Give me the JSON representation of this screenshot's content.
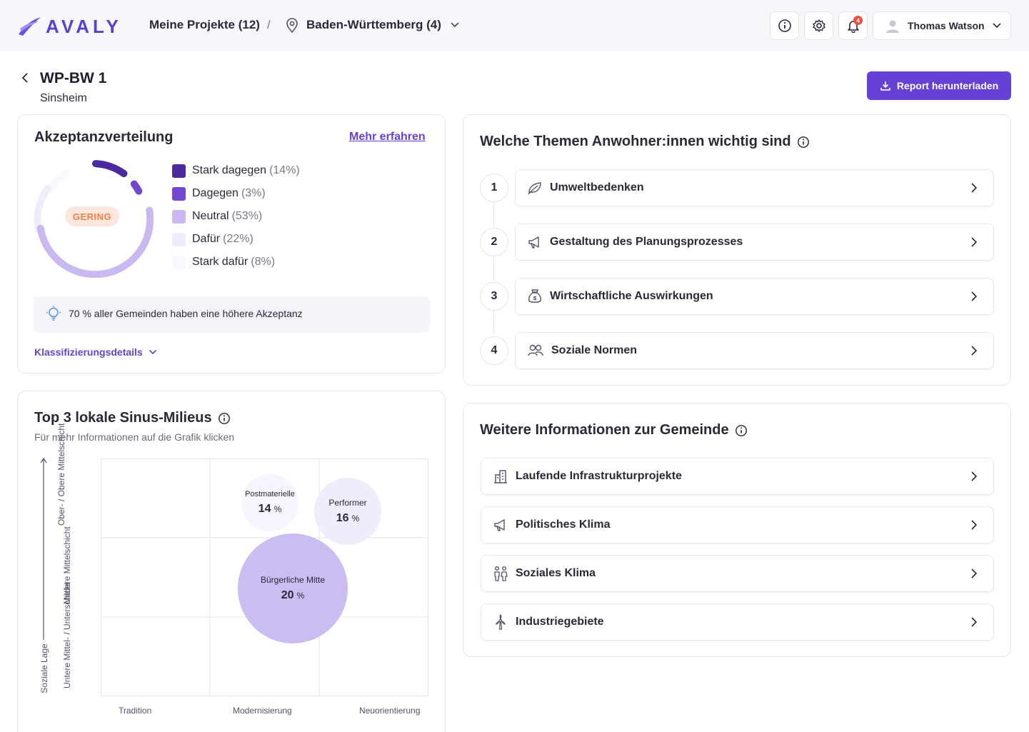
{
  "header": {
    "brand": "AVALY",
    "crumb_projects": "Meine Projekte (12)",
    "crumb_sep": "/",
    "crumb_region": "Baden-Württemberg (4)",
    "notification_count": "4",
    "user_name": "Thomas Watson"
  },
  "page": {
    "title": "WP-BW 1",
    "subtitle": "Sinsheim",
    "report_button": "Report herunterladen"
  },
  "acceptance": {
    "title": "Akzeptanzverteilung",
    "more_link": "Mehr erfahren",
    "gauge_label": "GERING",
    "legend": [
      {
        "label": "Stark dagegen",
        "pct": "(14%)",
        "color": "#4b2aa0"
      },
      {
        "label": "Dagegen",
        "pct": "(3%)",
        "color": "#7048d2"
      },
      {
        "label": "Neutral",
        "pct": "(53%)",
        "color": "#c9b9f0"
      },
      {
        "label": "Dafür",
        "pct": "(22%)",
        "color": "#f1ecfc"
      },
      {
        "label": "Stark dafür",
        "pct": "(8%)",
        "color": "#faf8fe"
      }
    ],
    "hint": "70 % aller Gemeinden haben eine höhere Akzeptanz",
    "details_link": "Klassifizierungsdetails"
  },
  "milieus": {
    "title": "Top 3 lokale Sinus-Milieus",
    "subtitle": "Für mehr Informationen auf die Grafik klicken",
    "y_axis": "Soziale Lage",
    "y_levels": [
      "Ober- / Obere Mittelschicht",
      "Mittlere Mittelschicht",
      "Untere Mittel- / Unterschicht"
    ],
    "x_levels": [
      "Tradition",
      "Modernisierung",
      "Neuorientierung"
    ],
    "bubbles": [
      {
        "name": "Postmaterielle",
        "value": "14",
        "unit": "%"
      },
      {
        "name": "Performer",
        "value": "16",
        "unit": "%"
      },
      {
        "name": "Bürgerliche Mitte",
        "value": "20",
        "unit": "%"
      }
    ]
  },
  "topics": {
    "title": "Welche Themen Anwohner:innen wichtig sind",
    "items": [
      {
        "num": "1",
        "label": "Umweltbedenken"
      },
      {
        "num": "2",
        "label": "Gestaltung des Planungsprozesses"
      },
      {
        "num": "3",
        "label": "Wirtschaftliche Auswirkungen"
      },
      {
        "num": "4",
        "label": "Soziale Normen"
      }
    ]
  },
  "community": {
    "title": "Weitere Informationen zur Gemeinde",
    "items": [
      {
        "label": "Laufende Infrastrukturprojekte"
      },
      {
        "label": "Politisches Klima"
      },
      {
        "label": "Soziales Klima"
      },
      {
        "label": "Industriegebiete"
      }
    ]
  }
}
